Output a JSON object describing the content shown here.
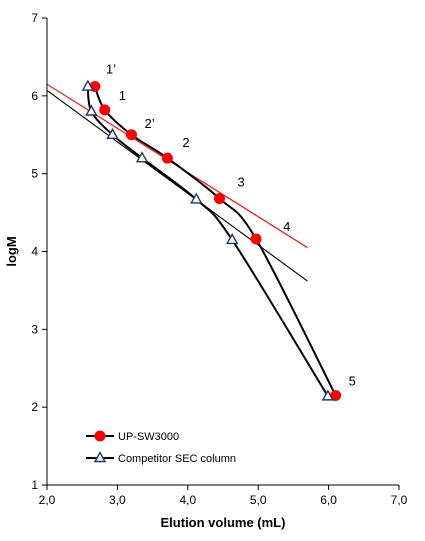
{
  "chart_data": {
    "type": "scatter",
    "xlabel": "Elution volume (mL)",
    "ylabel": "logM",
    "xlim": [
      2.0,
      7.0
    ],
    "ylim": [
      1,
      7
    ],
    "x_ticks": [
      "2,0",
      "3,0",
      "4,0",
      "5,0",
      "6,0",
      "7,0"
    ],
    "y_ticks": [
      "1",
      "2",
      "3",
      "4",
      "5",
      "6",
      "7"
    ],
    "grid": false,
    "legend_position": "bottom-left",
    "series": [
      {
        "name": "UP-SW3000",
        "marker": "circle",
        "color": "#ff0000",
        "line_color": "#000000",
        "x": [
          2.68,
          2.82,
          3.2,
          3.71,
          4.45,
          4.97,
          6.1
        ],
        "y": [
          6.12,
          5.82,
          5.5,
          5.2,
          4.68,
          4.16,
          2.15
        ]
      },
      {
        "name": "Competitor SEC column",
        "marker": "triangle",
        "color": "#1f3864",
        "line_color": "#000000",
        "x": [
          2.58,
          2.63,
          2.93,
          3.35,
          4.12,
          4.63,
          5.99
        ],
        "y": [
          6.12,
          5.8,
          5.5,
          5.2,
          4.67,
          4.15,
          2.14
        ]
      }
    ],
    "trendlines": [
      {
        "series": "UP-SW3000",
        "color": "#ff0000",
        "x": [
          2.0,
          5.7
        ],
        "y": [
          6.15,
          4.05
        ]
      },
      {
        "series": "Competitor SEC column",
        "color": "#000000",
        "x": [
          2.0,
          5.7
        ],
        "y": [
          6.07,
          3.62
        ]
      }
    ],
    "point_labels": [
      {
        "text": "1’",
        "x": 2.68,
        "y": 6.12
      },
      {
        "text": "1",
        "x": 2.82,
        "y": 5.82
      },
      {
        "text": "2’",
        "x": 3.2,
        "y": 5.5
      },
      {
        "text": "2",
        "x": 3.71,
        "y": 5.2
      },
      {
        "text": "3",
        "x": 4.45,
        "y": 4.68
      },
      {
        "text": "4",
        "x": 4.97,
        "y": 4.16
      },
      {
        "text": "5",
        "x": 6.1,
        "y": 2.15
      }
    ]
  }
}
